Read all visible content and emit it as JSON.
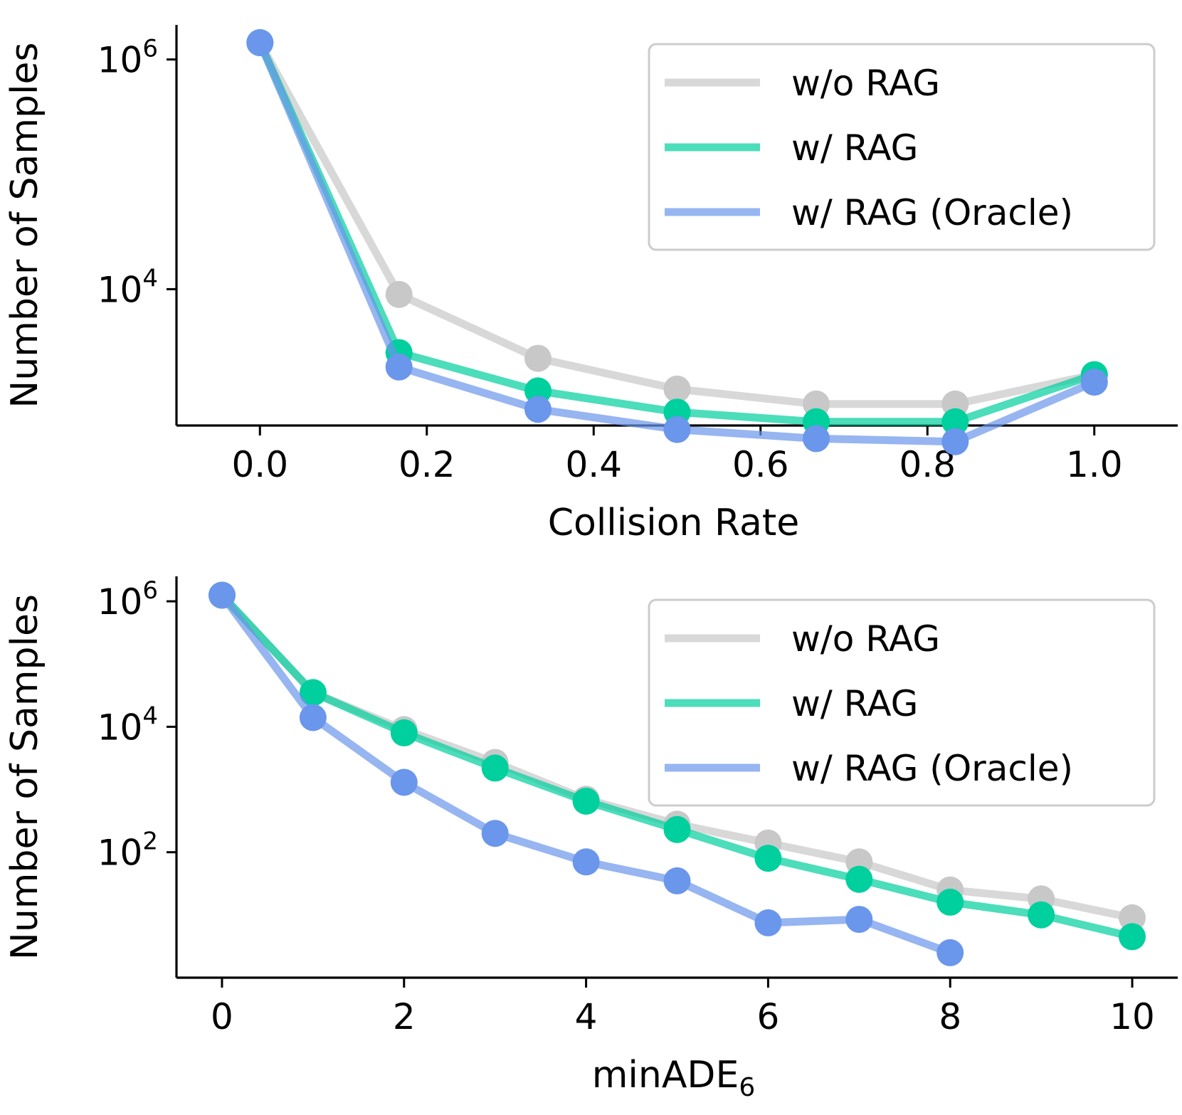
{
  "colors": {
    "wo_rag": "#c8c8c8",
    "w_rag": "#00cf9e",
    "w_rag_oracle": "#6a96eb",
    "axis": "#000000",
    "legend_border": "#cccccc"
  },
  "chart_data": [
    {
      "type": "line",
      "scale_y": "log",
      "xlabel": "Collision Rate",
      "ylabel": "Number of Samples",
      "xlim": [
        -0.1,
        1.1
      ],
      "ylim": [
        650,
        2000000
      ],
      "x_ticks": [
        0.0,
        0.2,
        0.4,
        0.6,
        0.8,
        1.0
      ],
      "x_tick_labels": [
        "0.0",
        "0.2",
        "0.4",
        "0.6",
        "0.8",
        "1.0"
      ],
      "y_ticks": [
        {
          "value": 1000000,
          "base": "10",
          "exp": "6"
        },
        {
          "value": 10000,
          "base": "10",
          "exp": "4"
        }
      ],
      "legend_position": "top-right",
      "grid": false,
      "x": [
        0.0,
        0.1667,
        0.3333,
        0.5,
        0.6667,
        0.8333,
        1.0
      ],
      "series": [
        {
          "name": "w/o RAG",
          "color_key": "wo_rag",
          "values": [
            1400000,
            9000,
            2500,
            1350,
            1000,
            1000,
            1800
          ]
        },
        {
          "name": "w/ RAG",
          "color_key": "w_rag",
          "values": [
            1400000,
            2800,
            1300,
            850,
            700,
            700,
            1800
          ]
        },
        {
          "name": "w/ RAG (Oracle)",
          "color_key": "w_rag_oracle",
          "values": [
            1400000,
            2100,
            900,
            600,
            500,
            470,
            1550
          ]
        }
      ]
    },
    {
      "type": "line",
      "scale_y": "log",
      "xlabel_main": "minADE",
      "xlabel_sub": "6",
      "ylabel": "Number of Samples",
      "xlim": [
        -0.5,
        10.5
      ],
      "ylim": [
        1.0,
        2500000
      ],
      "x_ticks": [
        0,
        2,
        4,
        6,
        8,
        10
      ],
      "x_tick_labels": [
        "0",
        "2",
        "4",
        "6",
        "8",
        "10"
      ],
      "y_ticks": [
        {
          "value": 1000000,
          "base": "10",
          "exp": "6"
        },
        {
          "value": 10000,
          "base": "10",
          "exp": "4"
        },
        {
          "value": 100,
          "base": "10",
          "exp": "2"
        }
      ],
      "legend_position": "top-right",
      "grid": false,
      "x": [
        0,
        1,
        2,
        3,
        4,
        5,
        6,
        7,
        8,
        9,
        10
      ],
      "series": [
        {
          "name": "w/o RAG",
          "color_key": "wo_rag",
          "values": [
            1250000,
            35000,
            9000,
            2700,
            700,
            280,
            140,
            70,
            25,
            18,
            9
          ]
        },
        {
          "name": "w/ RAG",
          "color_key": "w_rag",
          "values": [
            1250000,
            35000,
            8000,
            2200,
            650,
            230,
            80,
            37,
            16,
            10,
            4.5
          ]
        },
        {
          "name": "w/ RAG (Oracle)",
          "color_key": "w_rag_oracle",
          "values": [
            1250000,
            14000,
            1300,
            200,
            70,
            35,
            7.5,
            8.5,
            2.5,
            null,
            null
          ]
        }
      ]
    }
  ]
}
